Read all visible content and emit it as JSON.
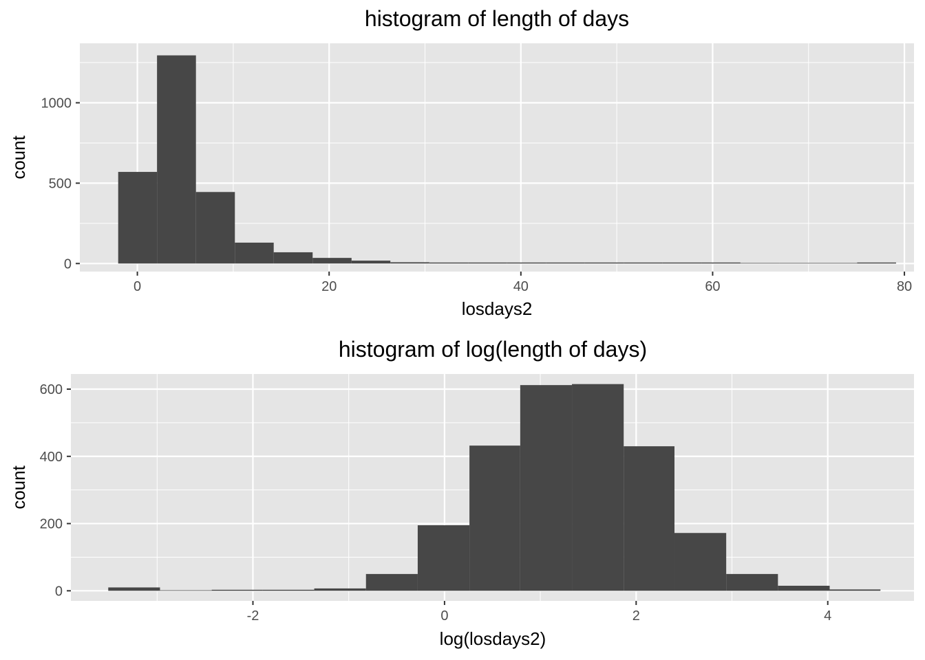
{
  "chart_data": [
    {
      "type": "bar",
      "title": "histogram of length of days",
      "xlabel": "losdays2",
      "ylabel": "count",
      "xlim": [
        -6,
        81
      ],
      "ylim": [
        -50,
        1370
      ],
      "xticks": [
        0,
        20,
        40,
        60,
        80
      ],
      "yticks": [
        0,
        500,
        1000
      ],
      "bin_width": 4.07,
      "bins": [
        {
          "x0": -2.0,
          "x1": 2.05,
          "count": 570
        },
        {
          "x0": 2.05,
          "x1": 6.11,
          "count": 1295
        },
        {
          "x0": 6.11,
          "x1": 10.17,
          "count": 445
        },
        {
          "x0": 10.17,
          "x1": 14.22,
          "count": 130
        },
        {
          "x0": 14.22,
          "x1": 18.28,
          "count": 70
        },
        {
          "x0": 18.28,
          "x1": 22.34,
          "count": 35
        },
        {
          "x0": 22.34,
          "x1": 26.39,
          "count": 18
        },
        {
          "x0": 26.39,
          "x1": 30.45,
          "count": 8
        },
        {
          "x0": 30.45,
          "x1": 34.51,
          "count": 4
        },
        {
          "x0": 34.51,
          "x1": 38.56,
          "count": 3
        },
        {
          "x0": 38.56,
          "x1": 42.62,
          "count": 2
        },
        {
          "x0": 42.62,
          "x1": 46.68,
          "count": 1
        },
        {
          "x0": 46.68,
          "x1": 50.73,
          "count": 3
        },
        {
          "x0": 50.73,
          "x1": 54.79,
          "count": 1
        },
        {
          "x0": 54.79,
          "x1": 58.85,
          "count": 2
        },
        {
          "x0": 58.85,
          "x1": 62.9,
          "count": 1
        },
        {
          "x0": 62.9,
          "x1": 66.96,
          "count": 0
        },
        {
          "x0": 66.96,
          "x1": 71.02,
          "count": 0
        },
        {
          "x0": 71.02,
          "x1": 75.07,
          "count": 0
        },
        {
          "x0": 75.07,
          "x1": 79.13,
          "count": 1
        }
      ],
      "grid": true,
      "bar_color": "#474747",
      "panel_color": "#e5e5e5",
      "grid_color": "#ffffff"
    },
    {
      "type": "bar",
      "title": "histogram of log(length of days)",
      "xlabel": "log(losdays2)",
      "ylabel": "count",
      "xlim": [
        -3.9,
        4.9
      ],
      "ylim": [
        -30,
        645
      ],
      "xticks": [
        -2,
        0,
        2,
        4
      ],
      "yticks": [
        0,
        200,
        400,
        600
      ],
      "bin_width": 0.537,
      "bins": [
        {
          "x0": -3.51,
          "x1": -2.97,
          "count": 10
        },
        {
          "x0": -2.97,
          "x1": -2.43,
          "count": 0
        },
        {
          "x0": -2.43,
          "x1": -1.9,
          "count": 2
        },
        {
          "x0": -1.9,
          "x1": -1.36,
          "count": 2
        },
        {
          "x0": -1.36,
          "x1": -0.82,
          "count": 7
        },
        {
          "x0": -0.82,
          "x1": -0.28,
          "count": 50
        },
        {
          "x0": -0.28,
          "x1": 0.26,
          "count": 195
        },
        {
          "x0": 0.26,
          "x1": 0.79,
          "count": 432
        },
        {
          "x0": 0.79,
          "x1": 1.33,
          "count": 612
        },
        {
          "x0": 1.33,
          "x1": 1.87,
          "count": 615
        },
        {
          "x0": 1.87,
          "x1": 2.4,
          "count": 430
        },
        {
          "x0": 2.4,
          "x1": 2.94,
          "count": 172
        },
        {
          "x0": 2.94,
          "x1": 3.48,
          "count": 50
        },
        {
          "x0": 3.48,
          "x1": 4.02,
          "count": 15
        },
        {
          "x0": 4.02,
          "x1": 4.55,
          "count": 4
        }
      ],
      "grid": true,
      "bar_color": "#474747",
      "panel_color": "#e5e5e5",
      "grid_color": "#ffffff"
    }
  ]
}
